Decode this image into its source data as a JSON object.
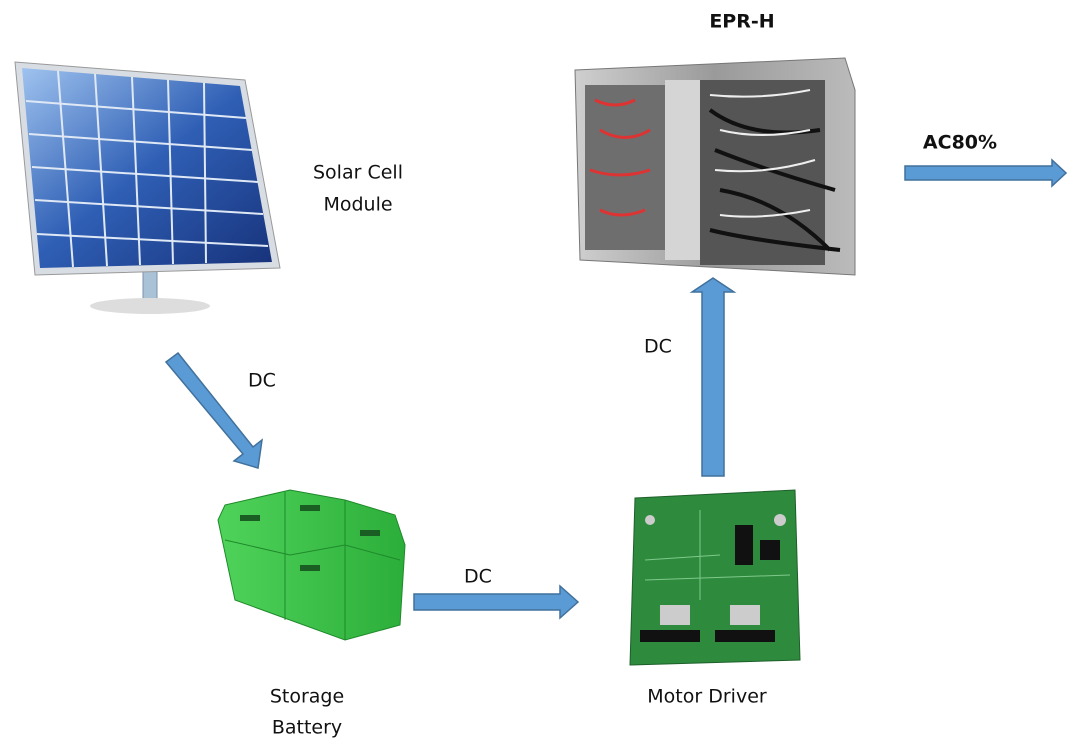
{
  "nodes": [
    {
      "lines": [
        "Solar Cell",
        "Module"
      ]
    },
    {
      "lines": [
        "EPR-H"
      ]
    },
    {
      "lines": [
        "Storage",
        "Battery"
      ]
    },
    {
      "lines": [
        "Motor Driver"
      ]
    }
  ],
  "edges": [
    {
      "label": "DC"
    },
    {
      "label": "DC"
    },
    {
      "label": "DC"
    },
    {
      "label": "AC80%"
    }
  ]
}
